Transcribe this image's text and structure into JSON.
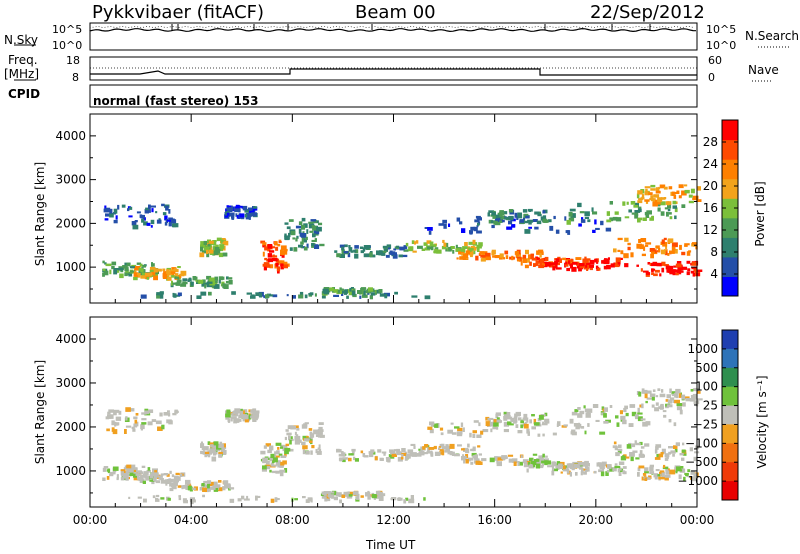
{
  "header": {
    "station": "Pykkvibaer (fitACF)",
    "beam": "Beam 00",
    "date": "22/Sep/2012"
  },
  "strip_labels": {
    "nsky": "N.Sky",
    "nsky_ticks": [
      "10^5",
      "10^0"
    ],
    "nsearch": "N.Search",
    "nsearch_ticks": [
      "10^5",
      "10^0"
    ],
    "freq_line1": "Freq.",
    "freq_line2": "[MHz]",
    "freq_ticks": [
      "18",
      "8"
    ],
    "nave": "Nave",
    "nave_ticks": [
      "60",
      "0"
    ],
    "cpid": "CPID",
    "cpid_value": "normal (fast stereo) 153"
  },
  "chart_data": [
    {
      "type": "heatmap",
      "name": "power",
      "ylabel": "Slant Range [km]",
      "colorbar_label": "Power [dB]",
      "ylim": [
        180,
        4500
      ],
      "yticks": [
        1000,
        2000,
        3000,
        4000
      ],
      "colorbar_ticks": [
        4,
        8,
        12,
        16,
        20,
        24,
        28
      ],
      "colorbar_range": [
        0,
        32
      ],
      "colors": [
        "#0000ff",
        "#244fa8",
        "#2e7f6e",
        "#4c9a55",
        "#7bbf3a",
        "#f2a31b",
        "#ff8000",
        "#ff4a00",
        "#ff0000"
      ]
    },
    {
      "type": "heatmap",
      "name": "velocity",
      "ylabel": "Slant Range [km]",
      "colorbar_label": "Velocity [m s⁻¹]",
      "ylim": [
        180,
        4500
      ],
      "yticks": [
        1000,
        2000,
        3000,
        4000
      ],
      "colorbar_ticks": [
        "1000",
        "500",
        "100",
        "25",
        "−25",
        "−100",
        "−500",
        "−1000"
      ],
      "colors": [
        "#1f3fb0",
        "#2e73b8",
        "#2f8f4f",
        "#6fc23b",
        "#bfbfb8",
        "#f0a020",
        "#f07010",
        "#f03a08",
        "#e80000"
      ]
    }
  ],
  "xaxis": {
    "label": "Time UT",
    "ticks": [
      "00:00",
      "04:00",
      "08:00",
      "12:00",
      "16:00",
      "20:00",
      "00:00"
    ]
  },
  "colors": {
    "axis": "#000000",
    "nodata": "#ffffff"
  }
}
